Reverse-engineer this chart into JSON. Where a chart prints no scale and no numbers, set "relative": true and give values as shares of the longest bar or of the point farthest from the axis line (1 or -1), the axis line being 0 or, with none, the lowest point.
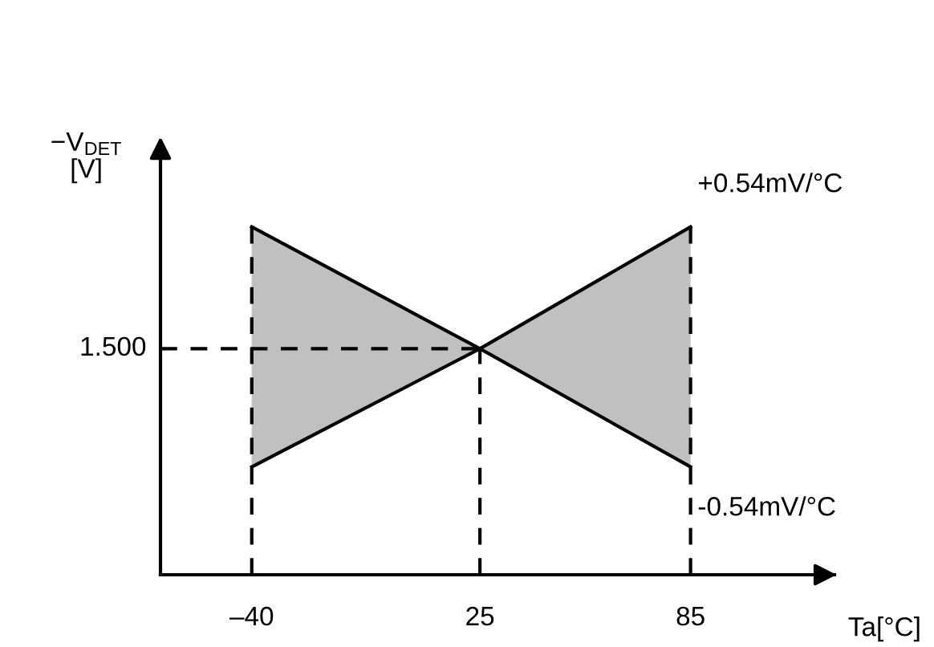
{
  "chart_data": {
    "type": "line",
    "relative": true,
    "xlabel": "Ta[°C]",
    "ylabel": "−V$_{DET}$\n[V]",
    "x": [
      -40,
      25,
      85
    ],
    "xlim": [
      -66,
      126
    ],
    "xticks": [
      {
        "value": -40,
        "label": "–40"
      },
      25,
      85
    ],
    "series": [
      {
        "name": "+0.54mV/°C",
        "color": "#000000",
        "values": [
          0.31,
          0.65,
          1
        ],
        "lower": [
          0.31,
          0.65,
          0.31
        ],
        "upper": [
          1,
          0.65,
          1
        ]
      },
      {
        "name": "-0.54mV/°C",
        "color": "#000000",
        "values": [
          1,
          0.65,
          0.31
        ]
      }
    ],
    "ref_lines": [
      {
        "axis": "y",
        "value": 0.65,
        "line_style": "dashed"
      },
      {
        "axis": "x",
        "value": -40,
        "line_style": "dashed"
      },
      {
        "axis": "x",
        "value": 25,
        "line_style": "dashed"
      },
      {
        "axis": "x",
        "value": 85,
        "line_style": "dashed"
      }
    ],
    "annotations": [
      "1.500"
    ],
    "grid": false,
    "legend": false
  }
}
